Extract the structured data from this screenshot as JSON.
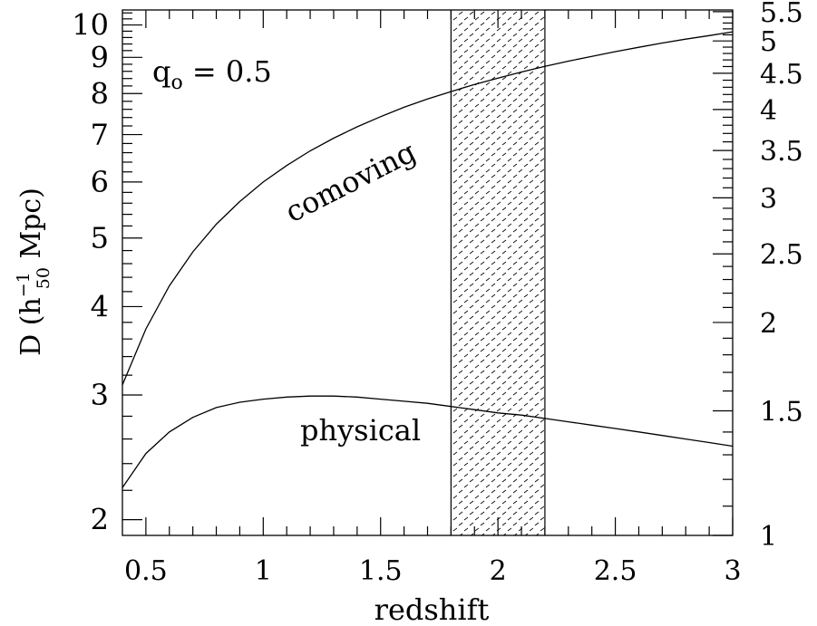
{
  "chart_data": {
    "type": "line",
    "xlabel": "redshift",
    "ylabel": {
      "prefix": "D  (h",
      "superscript": "−1",
      "subscript": "50",
      "suffix": " Mpc)"
    },
    "annotation": {
      "main": "q",
      "subscript": "o",
      "rest": " = 0.5"
    },
    "xlim": [
      0.4,
      3.0
    ],
    "ylim": [
      1.9,
      10.5
    ],
    "y_scale": "log",
    "right_axis": {
      "scale": "log",
      "ylim": [
        1.0,
        5.53
      ],
      "tick_labels": [
        "1",
        "1.5",
        "2",
        "2.5",
        "3",
        "3.5",
        "4",
        "4.5",
        "5",
        "5.5"
      ]
    },
    "x_ticks": [
      0.5,
      1,
      1.5,
      2,
      2.5,
      3
    ],
    "x_tick_labels": [
      "0.5",
      "1",
      "1.5",
      "2",
      "2.5",
      "3"
    ],
    "y_ticks": [
      2,
      3,
      4,
      5,
      6,
      7,
      8,
      9,
      10
    ],
    "y_tick_labels": [
      "2",
      "3",
      "4",
      "5",
      "6",
      "7",
      "8",
      "9",
      "10"
    ],
    "shaded_band": {
      "x": [
        1.8,
        2.2
      ],
      "pattern": "dashes"
    },
    "series": [
      {
        "name": "comoving",
        "x": [
          0.4,
          0.5,
          0.6,
          0.7,
          0.8,
          0.9,
          1.0,
          1.1,
          1.2,
          1.3,
          1.4,
          1.5,
          1.6,
          1.7,
          1.8,
          1.9,
          2.0,
          2.1,
          2.2,
          2.3,
          2.4,
          2.5,
          2.6,
          2.7,
          2.8,
          2.9,
          3.0
        ],
        "y": [
          3.1,
          3.72,
          4.28,
          4.78,
          5.23,
          5.63,
          6.0,
          6.33,
          6.64,
          6.92,
          7.18,
          7.42,
          7.65,
          7.86,
          8.05,
          8.24,
          8.41,
          8.58,
          8.74,
          8.89,
          9.03,
          9.17,
          9.3,
          9.43,
          9.55,
          9.66,
          9.78
        ]
      },
      {
        "name": "physical",
        "x": [
          0.4,
          0.5,
          0.6,
          0.7,
          0.8,
          0.9,
          1.0,
          1.1,
          1.2,
          1.3,
          1.4,
          1.5,
          1.6,
          1.7,
          1.8,
          1.9,
          2.0,
          2.1,
          2.2,
          2.3,
          2.4,
          2.5,
          2.6,
          2.7,
          2.8,
          2.9,
          3.0
        ],
        "y": [
          2.22,
          2.48,
          2.66,
          2.79,
          2.88,
          2.93,
          2.96,
          2.98,
          2.99,
          2.99,
          2.98,
          2.96,
          2.94,
          2.92,
          2.89,
          2.86,
          2.83,
          2.81,
          2.78,
          2.75,
          2.72,
          2.69,
          2.66,
          2.63,
          2.6,
          2.57,
          2.54
        ]
      }
    ],
    "grid": false,
    "legend": "none"
  }
}
